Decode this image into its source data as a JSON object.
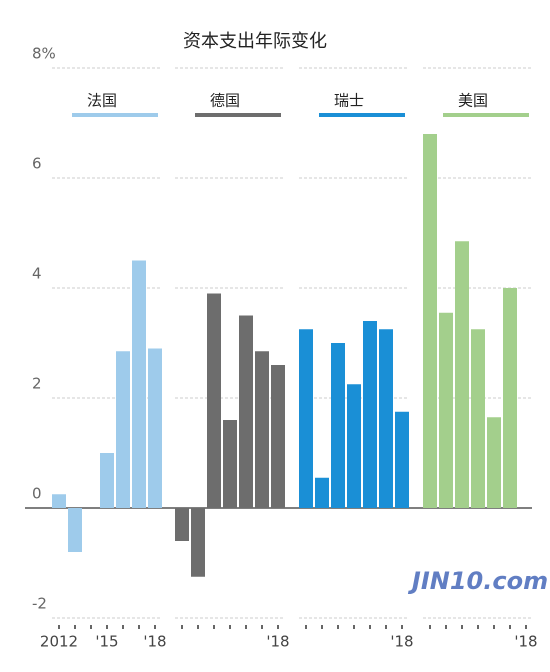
{
  "chart_data": {
    "type": "bar",
    "title": "资本支出年际变化",
    "watermark": "JIN10.com",
    "ylim": [
      -2,
      8
    ],
    "yticks": [
      -2,
      0,
      2,
      4,
      6,
      {
        "value": 8,
        "label": "8%"
      }
    ],
    "grid": true,
    "series": [
      {
        "name": "法国",
        "color": "#9ecbeb",
        "categories": [
          "2012",
          null,
          null,
          "'15",
          null,
          null,
          "'18"
        ],
        "values": [
          0.25,
          -0.8,
          0,
          1.0,
          2.85,
          4.5,
          2.9
        ]
      },
      {
        "name": "德国",
        "color": "#6d6d6d",
        "categories": [
          null,
          null,
          null,
          null,
          null,
          null,
          "'18"
        ],
        "values": [
          -0.6,
          -1.25,
          3.9,
          1.6,
          3.5,
          2.85,
          2.6
        ]
      },
      {
        "name": "瑞士",
        "color": "#1a8fd6",
        "categories": [
          null,
          null,
          null,
          null,
          null,
          null,
          "'18"
        ],
        "values": [
          3.25,
          0.55,
          3.0,
          2.25,
          3.4,
          3.25,
          1.75
        ]
      },
      {
        "name": "美国",
        "color": "#a3cf8c",
        "categories": [
          null,
          null,
          null,
          null,
          null,
          null,
          "'18"
        ],
        "values": [
          6.8,
          3.55,
          4.85,
          3.25,
          1.65,
          4.0,
          null
        ]
      }
    ]
  }
}
